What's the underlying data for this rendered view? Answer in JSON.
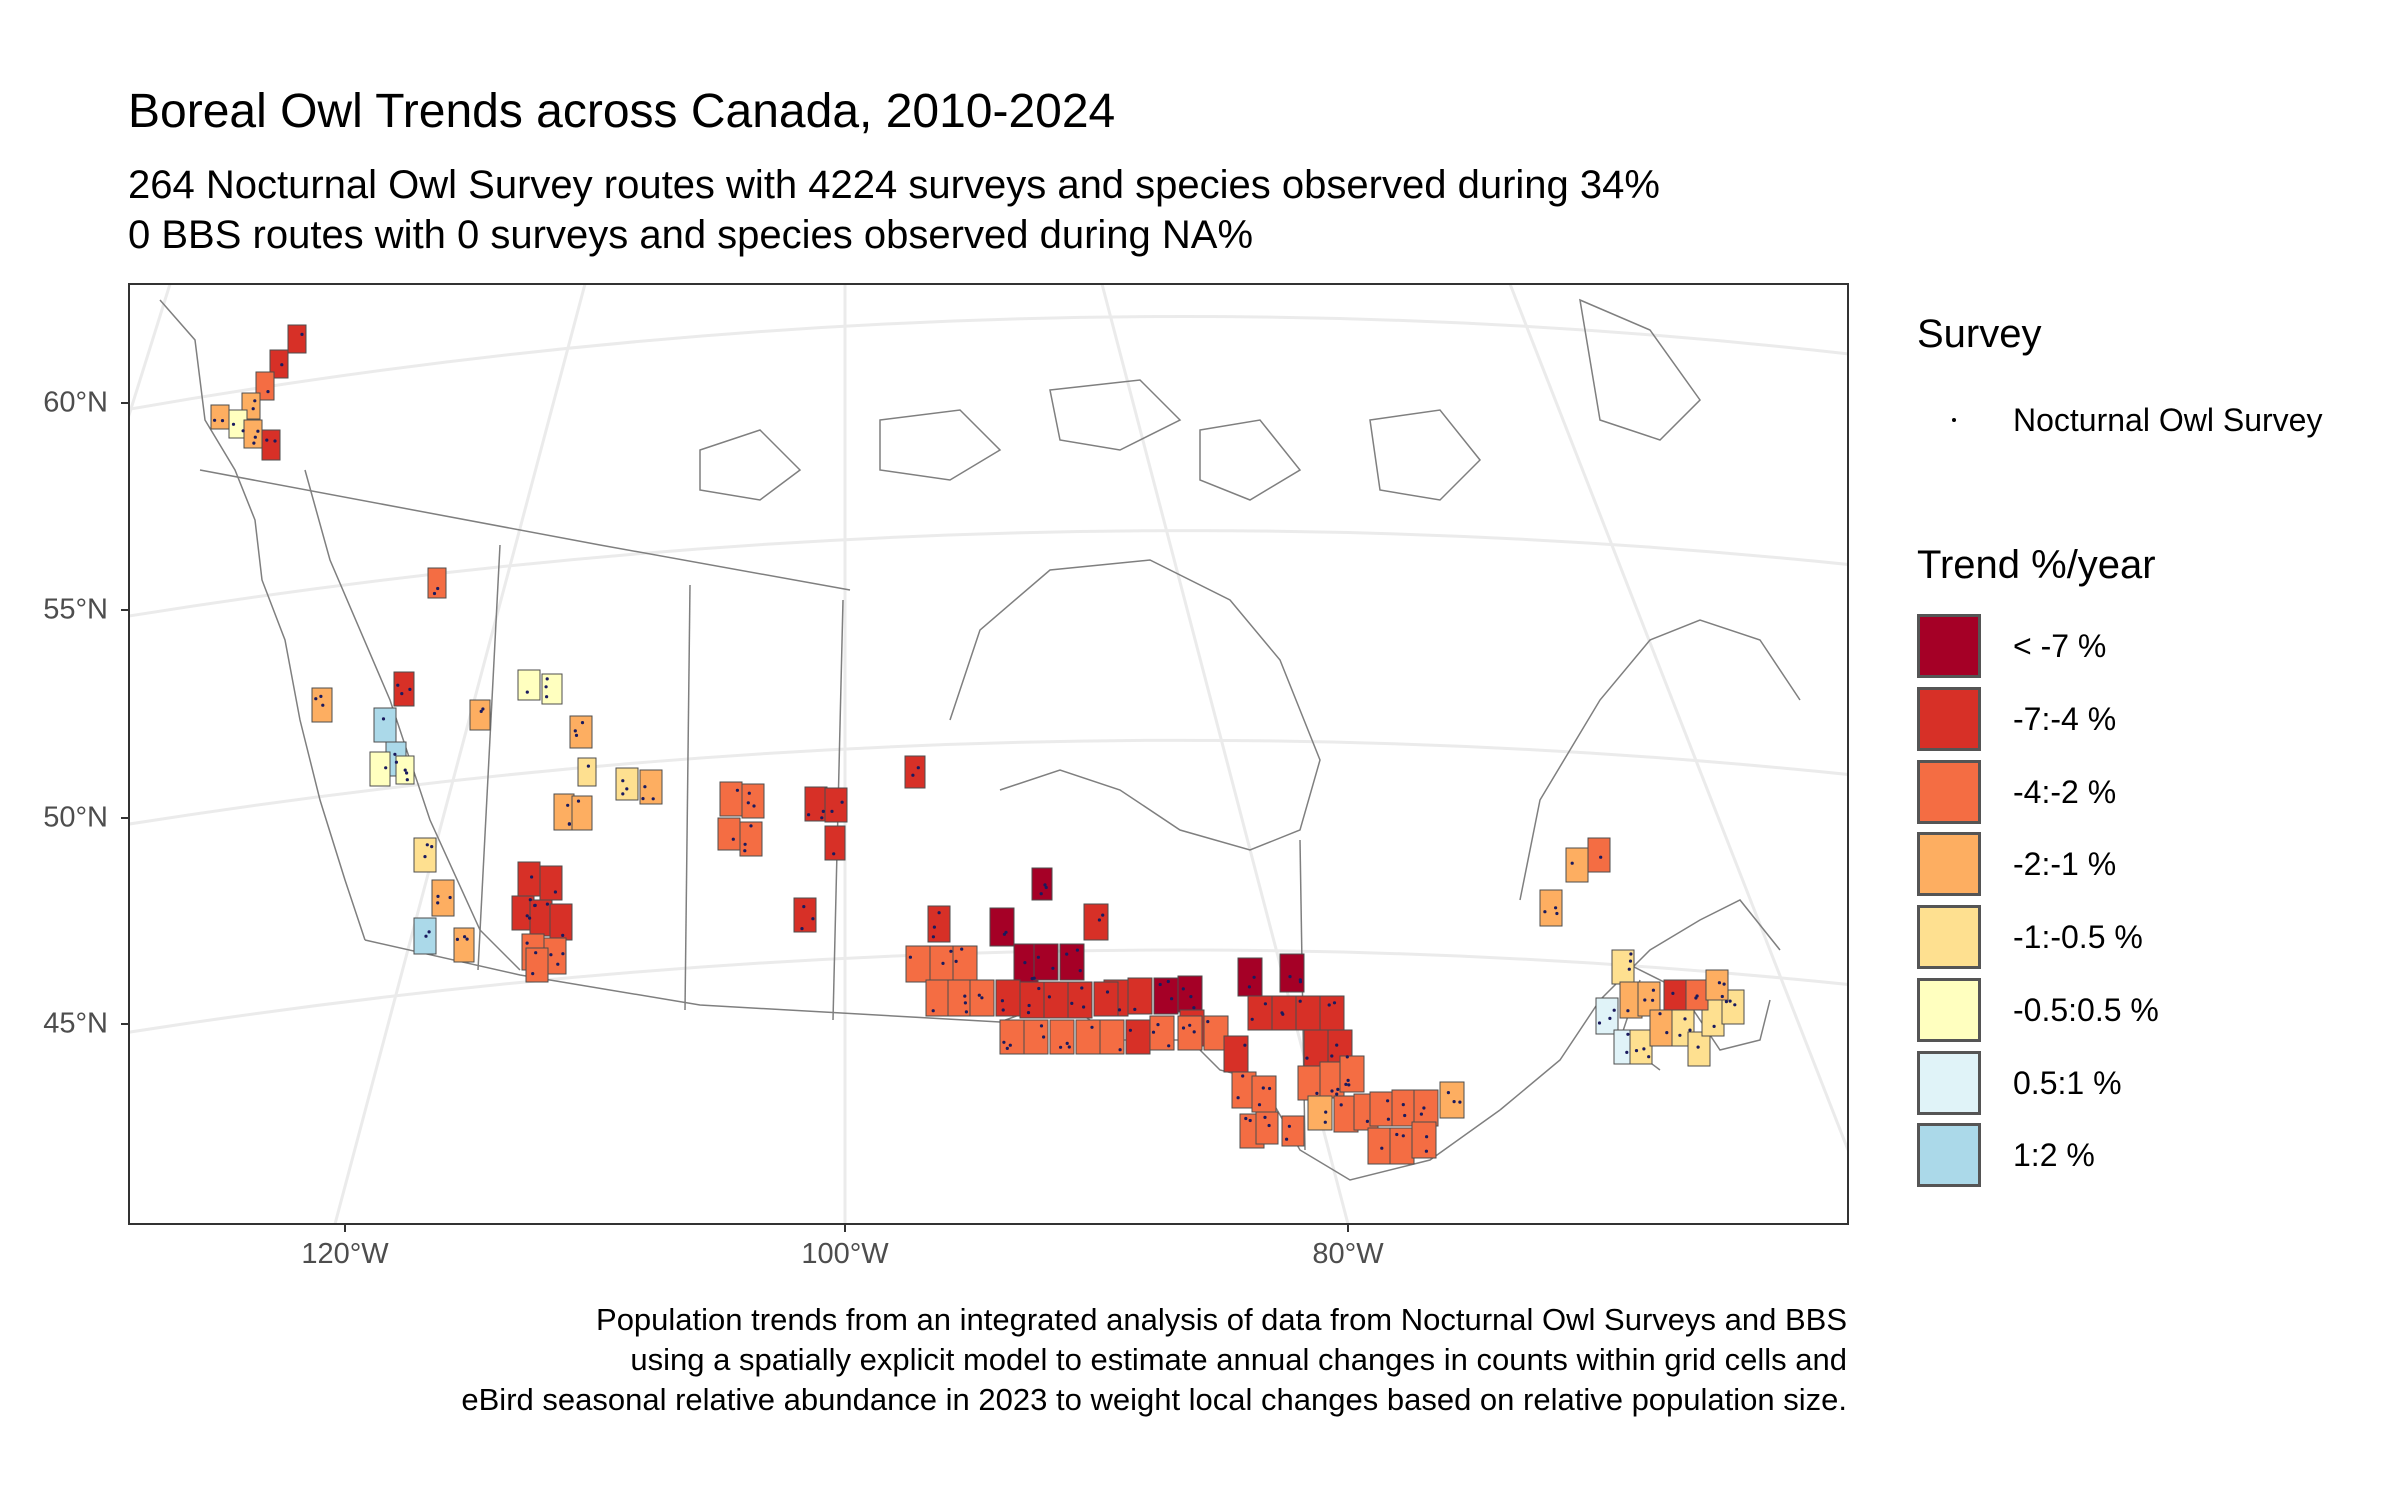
{
  "title": "Boreal Owl Trends across Canada, 2010-2024",
  "subtitle": {
    "line1": "264 Nocturnal Owl Survey routes with 4224 surveys and species observed during 34%",
    "line2": "0 BBS routes with 0 surveys and species observed during NA%"
  },
  "axes": {
    "lat_labels": [
      "60°N",
      "55°N",
      "50°N",
      "45°N"
    ],
    "lon_labels": [
      "120°W",
      "100°W",
      "80°W"
    ]
  },
  "legend": {
    "survey_title": "Survey",
    "survey_items": [
      {
        "label": "Nocturnal Owl Survey",
        "symbol": "dot",
        "color": "#000000"
      }
    ],
    "trend_title": "Trend %/year",
    "trend_items": [
      {
        "label": "< -7 %",
        "color": "#a50026"
      },
      {
        "label": "-7:-4 %",
        "color": "#d73027"
      },
      {
        "label": "-4:-2 %",
        "color": "#f46d43"
      },
      {
        "label": "-2:-1 %",
        "color": "#fdae61"
      },
      {
        "label": "-1:-0.5 %",
        "color": "#fee090"
      },
      {
        "label": "-0.5:0.5 %",
        "color": "#ffffbf"
      },
      {
        "label": "0.5:1 %",
        "color": "#e0f3f8"
      },
      {
        "label": "1:2 %",
        "color": "#abd9e9"
      }
    ]
  },
  "caption": {
    "line1": "Population trends from an integrated analysis of data from Nocturnal Owl Surveys and BBS",
    "line2": "using a spatially explicit model to estimate annual changes in counts within grid cells and",
    "line3": "eBird seasonal relative abundance in 2023 to weight local changes based on relative population size."
  },
  "colors": {
    "panel_border": "#333333",
    "graticule": "#ebebeb",
    "coastline": "#7f7f7f",
    "route_dot": "#1a1a5e"
  }
}
